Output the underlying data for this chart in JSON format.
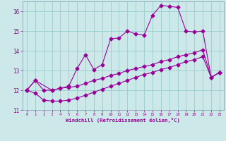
{
  "xlabel": "Windchill (Refroidissement éolien,°C)",
  "bg_color": "#cce8e8",
  "line_color": "#990099",
  "grid_color": "#99cccc",
  "line_wiggly_x": [
    0,
    1,
    3,
    4,
    5,
    6,
    7,
    8,
    9,
    10,
    11,
    12,
    13,
    14,
    15,
    16,
    17,
    18,
    19,
    20,
    21,
    22,
    23
  ],
  "line_wiggly_y": [
    12.0,
    12.5,
    12.0,
    12.1,
    12.2,
    13.1,
    13.8,
    13.05,
    13.3,
    14.6,
    14.65,
    15.0,
    14.85,
    14.8,
    15.8,
    16.3,
    16.25,
    16.2,
    15.0,
    14.95,
    15.0,
    12.65,
    12.9
  ],
  "line_mid_x": [
    0,
    1,
    2,
    3,
    4,
    5,
    6,
    7,
    8,
    9,
    10,
    11,
    12,
    13,
    14,
    15,
    16,
    17,
    18,
    19,
    20,
    21,
    22,
    23
  ],
  "line_mid_y": [
    12.0,
    12.5,
    12.0,
    12.0,
    12.1,
    12.15,
    12.2,
    12.35,
    12.5,
    12.6,
    12.75,
    12.85,
    13.0,
    13.1,
    13.2,
    13.3,
    13.45,
    13.55,
    13.7,
    13.8,
    13.9,
    14.05,
    12.65,
    12.9
  ],
  "line_low_x": [
    0,
    1,
    2,
    3,
    4,
    5,
    6,
    7,
    8,
    9,
    10,
    11,
    12,
    13,
    14,
    15,
    16,
    17,
    18,
    19,
    20,
    21,
    22,
    23
  ],
  "line_low_y": [
    12.0,
    11.85,
    11.5,
    11.45,
    11.45,
    11.5,
    11.6,
    11.75,
    11.9,
    12.05,
    12.2,
    12.35,
    12.5,
    12.65,
    12.8,
    12.9,
    13.05,
    13.15,
    13.3,
    13.45,
    13.55,
    13.7,
    12.65,
    12.9
  ],
  "ylim": [
    11.0,
    16.5
  ],
  "yticks": [
    11,
    12,
    13,
    14,
    15,
    16
  ],
  "xlim": [
    -0.5,
    23.5
  ],
  "xticks": [
    0,
    1,
    2,
    3,
    4,
    5,
    6,
    7,
    8,
    9,
    10,
    11,
    12,
    13,
    14,
    15,
    16,
    17,
    18,
    19,
    20,
    21,
    22,
    23
  ]
}
